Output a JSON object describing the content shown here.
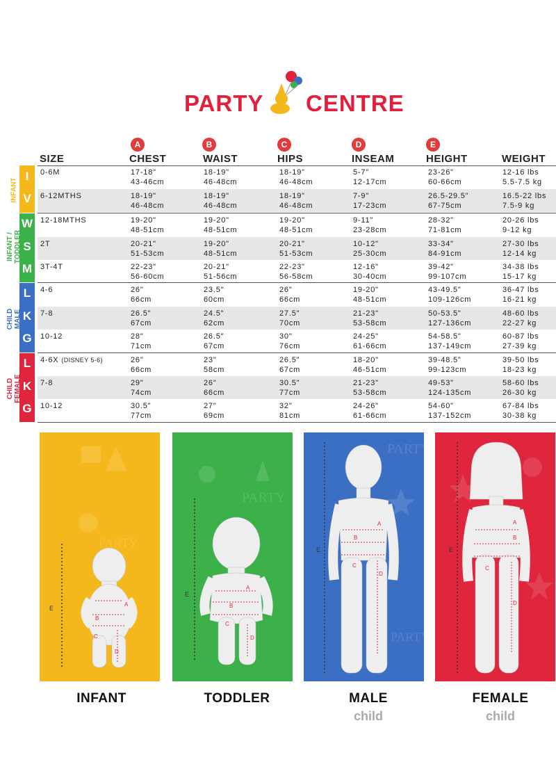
{
  "brand": {
    "left": "PARTY",
    "right": "CENTRE"
  },
  "columns": [
    {
      "badge": "",
      "label": "SIZE"
    },
    {
      "badge": "A",
      "label": "CHEST"
    },
    {
      "badge": "B",
      "label": "WAIST"
    },
    {
      "badge": "C",
      "label": "HIPS"
    },
    {
      "badge": "D",
      "label": "INSEAM"
    },
    {
      "badge": "E",
      "label": "HEIGHT"
    },
    {
      "badge": "",
      "label": "WEIGHT"
    }
  ],
  "groups": [
    {
      "label1": "INFANT",
      "label2": "",
      "color": "#f5b81c",
      "letters": [
        "I",
        "V"
      ]
    },
    {
      "label1": "INFANT /",
      "label2": "TODDLER",
      "color": "#3cb14a",
      "letters": [
        "W",
        "S",
        "M"
      ]
    },
    {
      "label1": "CHILD",
      "label2": "MALE",
      "color": "#3b6fc4",
      "letters": [
        "L",
        "K",
        "G"
      ]
    },
    {
      "label1": "CHILD",
      "label2": "FEMALE",
      "color": "#e0263c",
      "letters": [
        "L",
        "K",
        "G"
      ]
    }
  ],
  "rows": [
    {
      "size": "0-6M",
      "size_note": "",
      "chest": [
        "17-18\"",
        "43-46cm"
      ],
      "waist": [
        "18-19\"",
        "46-48cm"
      ],
      "hips": [
        "18-19\"",
        "46-48cm"
      ],
      "inseam": [
        "5-7\"",
        "12-17cm"
      ],
      "height": [
        "23-26\"",
        "60-66cm"
      ],
      "weight": [
        "12-16 lbs",
        "5.5-7.5 kg"
      ]
    },
    {
      "size": "6-12MTHS",
      "size_note": "",
      "chest": [
        "18-19\"",
        "46-48cm"
      ],
      "waist": [
        "18-19\"",
        "46-48cm"
      ],
      "hips": [
        "18-19\"",
        "46-48cm"
      ],
      "inseam": [
        "7-9\"",
        "17-23cm"
      ],
      "height": [
        "26.5-29.5\"",
        "67-75cm"
      ],
      "weight": [
        "16.5-22 lbs",
        "7.5-9 kg"
      ]
    },
    {
      "size": "12-18MTHS",
      "size_note": "",
      "chest": [
        "19-20\"",
        "48-51cm"
      ],
      "waist": [
        "19-20\"",
        "48-51cm"
      ],
      "hips": [
        "19-20\"",
        "48-51cm"
      ],
      "inseam": [
        "9-11\"",
        "23-28cm"
      ],
      "height": [
        "28-32\"",
        "71-81cm"
      ],
      "weight": [
        "20-26 lbs",
        "9-12 kg"
      ]
    },
    {
      "size": "2T",
      "size_note": "",
      "chest": [
        "20-21\"",
        "51-53cm"
      ],
      "waist": [
        "19-20\"",
        "48-51cm"
      ],
      "hips": [
        "20-21\"",
        "51-53cm"
      ],
      "inseam": [
        "10-12\"",
        "25-30cm"
      ],
      "height": [
        "33-34\"",
        "84-91cm"
      ],
      "weight": [
        "27-30 lbs",
        "12-14 kg"
      ]
    },
    {
      "size": "3T-4T",
      "size_note": "",
      "chest": [
        "22-23\"",
        "56-60cm"
      ],
      "waist": [
        "20-21\"",
        "51-56cm"
      ],
      "hips": [
        "22-23\"",
        "56-58cm"
      ],
      "inseam": [
        "12-16\"",
        "30-40cm"
      ],
      "height": [
        "39-42\"",
        "99-107cm"
      ],
      "weight": [
        "34-38 lbs",
        "15-17 kg"
      ]
    },
    {
      "size": "4-6",
      "size_note": "",
      "chest": [
        "26\"",
        "66cm"
      ],
      "waist": [
        "23.5\"",
        "60cm"
      ],
      "hips": [
        "26\"",
        "66cm"
      ],
      "inseam": [
        "19-20\"",
        "48-51cm"
      ],
      "height": [
        "43-49.5\"",
        "109-126cm"
      ],
      "weight": [
        "36-47 lbs",
        "16-21 kg"
      ]
    },
    {
      "size": "7-8",
      "size_note": "",
      "chest": [
        "26.5\"",
        "67cm"
      ],
      "waist": [
        "24.5\"",
        "62cm"
      ],
      "hips": [
        "27.5\"",
        "70cm"
      ],
      "inseam": [
        "21-23\"",
        "53-58cm"
      ],
      "height": [
        "50-53.5\"",
        "127-136cm"
      ],
      "weight": [
        "48-60 lbs",
        "22-27 kg"
      ]
    },
    {
      "size": "10-12",
      "size_note": "",
      "chest": [
        "28\"",
        "71cm"
      ],
      "waist": [
        "26.5\"",
        "67cm"
      ],
      "hips": [
        "30\"",
        "76cm"
      ],
      "inseam": [
        "24-25\"",
        "61-66cm"
      ],
      "height": [
        "54-58.5\"",
        "137-149cm"
      ],
      "weight": [
        "60-87 lbs",
        "27-39 kg"
      ]
    },
    {
      "size": "4-6X",
      "size_note": "(DISNEY 5-6)",
      "chest": [
        "26\"",
        "66cm"
      ],
      "waist": [
        "23\"",
        "58cm"
      ],
      "hips": [
        "26.5\"",
        "67cm"
      ],
      "inseam": [
        "18-20\"",
        "46-51cm"
      ],
      "height": [
        "39-48.5\"",
        "99-123cm"
      ],
      "weight": [
        "39-50 lbs",
        "18-23 kg"
      ]
    },
    {
      "size": "7-8",
      "size_note": "",
      "chest": [
        "29\"",
        "74cm"
      ],
      "waist": [
        "26\"",
        "66cm"
      ],
      "hips": [
        "30.5\"",
        "77cm"
      ],
      "inseam": [
        "21-23\"",
        "53-58cm"
      ],
      "height": [
        "49-53\"",
        "124-135cm"
      ],
      "weight": [
        "58-60 lbs",
        "26-30 kg"
      ]
    },
    {
      "size": "10-12",
      "size_note": "",
      "chest": [
        "30.5\"",
        "77cm"
      ],
      "waist": [
        "27\"",
        "69cm"
      ],
      "hips": [
        "32\"",
        "81cm"
      ],
      "inseam": [
        "24-26\"",
        "61-66cm"
      ],
      "height": [
        "54-60\"",
        "137-152cm"
      ],
      "weight": [
        "67-84 lbs",
        "30-38 kg"
      ]
    }
  ],
  "panels": [
    {
      "title": "INFANT",
      "subtitle": "",
      "color": "#f5b81c"
    },
    {
      "title": "TODDLER",
      "subtitle": "",
      "color": "#3cb14a"
    },
    {
      "title": "MALE",
      "subtitle": "child",
      "color": "#3b6fc4"
    },
    {
      "title": "FEMALE",
      "subtitle": "child",
      "color": "#e0263c"
    }
  ],
  "diagram_labels": {
    "a": "A",
    "b": "B",
    "c": "C",
    "d": "D",
    "e": "E"
  }
}
